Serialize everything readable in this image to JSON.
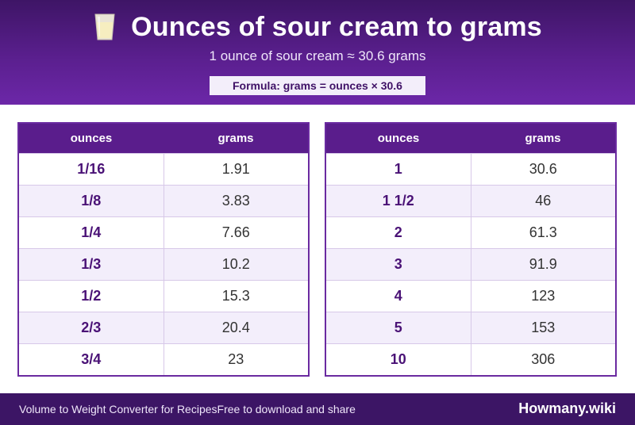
{
  "header": {
    "title": "Ounces of sour cream to grams",
    "subtitle": "1 ounce of sour cream ≈ 30.6 grams",
    "formula": "Formula: grams = ounces × 30.6",
    "icon": "glass-icon"
  },
  "tables": [
    {
      "headers": {
        "ounces": "ounces",
        "grams": "grams"
      },
      "rows": [
        {
          "ounces": "1/16",
          "grams": "1.91"
        },
        {
          "ounces": "1/8",
          "grams": "3.83"
        },
        {
          "ounces": "1/4",
          "grams": "7.66"
        },
        {
          "ounces": "1/3",
          "grams": "10.2"
        },
        {
          "ounces": "1/2",
          "grams": "15.3"
        },
        {
          "ounces": "2/3",
          "grams": "20.4"
        },
        {
          "ounces": "3/4",
          "grams": "23"
        }
      ]
    },
    {
      "headers": {
        "ounces": "ounces",
        "grams": "grams"
      },
      "rows": [
        {
          "ounces": "1",
          "grams": "30.6"
        },
        {
          "ounces": "1 1/2",
          "grams": "46"
        },
        {
          "ounces": "2",
          "grams": "61.3"
        },
        {
          "ounces": "3",
          "grams": "91.9"
        },
        {
          "ounces": "4",
          "grams": "123"
        },
        {
          "ounces": "5",
          "grams": "153"
        },
        {
          "ounces": "10",
          "grams": "306"
        }
      ]
    }
  ],
  "footer": {
    "left_text": "Volume to Weight Converter for RecipesFree to download and share",
    "brand": "Howmany.wiki"
  },
  "colors": {
    "header_dark": "#3e1566",
    "header_light": "#6c27a8",
    "accent": "#4a1276",
    "row_alt": "#f3eefb"
  }
}
